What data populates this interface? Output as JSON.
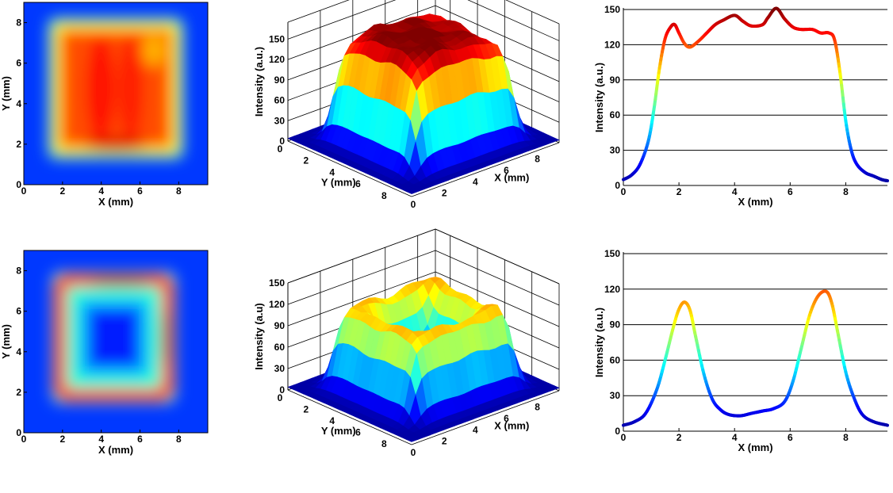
{
  "colormap": [
    "#00008f",
    "#0000ff",
    "#0080ff",
    "#00ffff",
    "#80ff80",
    "#ffff00",
    "#ff8000",
    "#ff0000",
    "#800000"
  ],
  "chart_data": [
    {
      "id": "heatmap-top",
      "type": "heatmap",
      "pattern": "filled-square",
      "xlabel": "X (mm)",
      "ylabel": "Y (mm)",
      "xlim": [
        0,
        9.5
      ],
      "ylim": [
        0,
        9
      ],
      "xticks": [
        "0",
        "2",
        "4",
        "6",
        "8"
      ],
      "yticks": [
        "0",
        "2",
        "4",
        "6",
        "8"
      ],
      "square_bounds_mm": [
        1.5,
        1.5,
        8.0,
        8.0
      ]
    },
    {
      "id": "surface-top",
      "type": "surface",
      "pattern": "flat-top",
      "zlabel": "Intensity (a.u.)",
      "ylabel": "Y (mm)",
      "xlabel": "X (mm)",
      "zticks": [
        "0",
        "30",
        "60",
        "90",
        "120",
        "150"
      ],
      "yticks": [
        "0",
        "2",
        "4",
        "6",
        "8"
      ],
      "xticks": [
        "0",
        "2",
        "4",
        "6",
        "8"
      ],
      "zlim": [
        0,
        175
      ]
    },
    {
      "id": "profile-top",
      "type": "line",
      "xlabel": "X (mm)",
      "ylabel": "Intensity (a.u.)",
      "xlim": [
        0,
        9.5
      ],
      "ylim": [
        0,
        150
      ],
      "xticks": [
        "0",
        "2",
        "4",
        "6",
        "8"
      ],
      "yticks": [
        "0",
        "30",
        "60",
        "90",
        "120",
        "150"
      ],
      "grid": "horizontal",
      "x": [
        0,
        0.3,
        0.6,
        0.9,
        1.1,
        1.3,
        1.5,
        1.7,
        1.85,
        2.0,
        2.2,
        2.4,
        2.7,
        3.0,
        3.3,
        3.6,
        4.0,
        4.3,
        4.6,
        5.0,
        5.2,
        5.5,
        5.8,
        6.1,
        6.4,
        6.8,
        7.1,
        7.4,
        7.6,
        7.8,
        8.0,
        8.2,
        8.4,
        8.7,
        9.0,
        9.3,
        9.5
      ],
      "y": [
        5,
        9,
        18,
        38,
        65,
        100,
        125,
        135,
        137,
        130,
        121,
        118,
        123,
        130,
        137,
        141,
        145,
        140,
        136,
        137,
        143,
        151,
        142,
        135,
        133,
        133,
        130,
        130,
        124,
        95,
        55,
        30,
        18,
        11,
        8,
        5,
        4
      ]
    },
    {
      "id": "heatmap-bottom",
      "type": "heatmap",
      "pattern": "hollow-ring",
      "xlabel": "X (mm)",
      "ylabel": "Y (mm)",
      "xlim": [
        0,
        9.5
      ],
      "ylim": [
        0,
        9
      ],
      "xticks": [
        "0",
        "2",
        "4",
        "6",
        "8"
      ],
      "yticks": [
        "0",
        "2",
        "4",
        "6",
        "8"
      ],
      "square_bounds_mm": [
        1.7,
        1.7,
        7.6,
        7.7
      ]
    },
    {
      "id": "surface-bottom",
      "type": "surface",
      "pattern": "hollow-ring",
      "zlabel": "Intensity (a.u)",
      "ylabel": "Y (mm)",
      "xlabel": "X (mm)",
      "zticks": [
        "0",
        "30",
        "60",
        "90",
        "120",
        "150"
      ],
      "yticks": [
        "0",
        "2",
        "4",
        "6",
        "8"
      ],
      "xticks": [
        "0",
        "2",
        "4",
        "6",
        "8"
      ],
      "zlim": [
        0,
        150
      ]
    },
    {
      "id": "profile-bottom",
      "type": "line",
      "xlabel": "X (mm)",
      "ylabel": "Intensity (a.u.)",
      "xlim": [
        0,
        9.5
      ],
      "ylim": [
        0,
        150
      ],
      "xticks": [
        "0",
        "2",
        "4",
        "6",
        "8"
      ],
      "yticks": [
        "0",
        "30",
        "60",
        "90",
        "120",
        "150"
      ],
      "grid": "horizontal",
      "x": [
        0,
        0.4,
        0.8,
        1.2,
        1.5,
        1.8,
        2.0,
        2.2,
        2.4,
        2.6,
        2.9,
        3.2,
        3.5,
        3.8,
        4.2,
        4.6,
        5.0,
        5.4,
        5.8,
        6.1,
        6.4,
        6.7,
        7.0,
        7.3,
        7.5,
        7.7,
        8.0,
        8.3,
        8.6,
        9.0,
        9.5
      ],
      "y": [
        5,
        8,
        15,
        35,
        60,
        88,
        103,
        109,
        102,
        80,
        48,
        27,
        18,
        14,
        13,
        15,
        17,
        19,
        25,
        42,
        70,
        98,
        114,
        118,
        108,
        85,
        50,
        28,
        14,
        8,
        5
      ]
    }
  ]
}
